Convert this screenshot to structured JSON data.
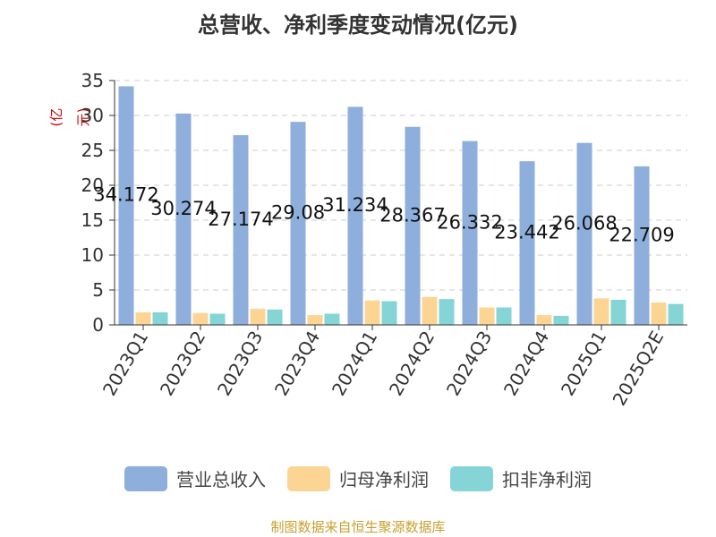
{
  "chart_data": {
    "type": "bar",
    "title": "总营收、净利季度变动情况(亿元)",
    "ylabel": "(亿元)",
    "ylim": [
      0,
      35
    ],
    "yticks": [
      0,
      5,
      10,
      15,
      20,
      25,
      30,
      35
    ],
    "grid": true,
    "legend_position": "bottom",
    "categories": [
      "2023Q1",
      "2023Q2",
      "2023Q3",
      "2023Q4",
      "2024Q1",
      "2024Q2",
      "2024Q3",
      "2024Q4",
      "2025Q1",
      "2025Q2E"
    ],
    "series": [
      {
        "name": "营业总收入",
        "color": "#8eaedb",
        "values": [
          34.172,
          30.274,
          27.174,
          29.08,
          31.234,
          28.367,
          26.332,
          23.442,
          26.068,
          22.709
        ],
        "labels": [
          "34.172",
          "30.274",
          "27.174",
          "29.08",
          "31.234",
          "28.367",
          "26.332",
          "23.442",
          "26.068",
          "22.709"
        ]
      },
      {
        "name": "归母净利润",
        "color": "#fcd594",
        "values": [
          1.8,
          1.7,
          2.3,
          1.4,
          3.5,
          4.0,
          2.5,
          1.4,
          3.8,
          3.2
        ]
      },
      {
        "name": "扣非净利润",
        "color": "#85d4d6",
        "values": [
          1.8,
          1.6,
          2.2,
          1.6,
          3.4,
          3.7,
          2.5,
          1.3,
          3.6,
          3.0
        ]
      }
    ]
  },
  "source": "制图数据来自恒生聚源数据库"
}
